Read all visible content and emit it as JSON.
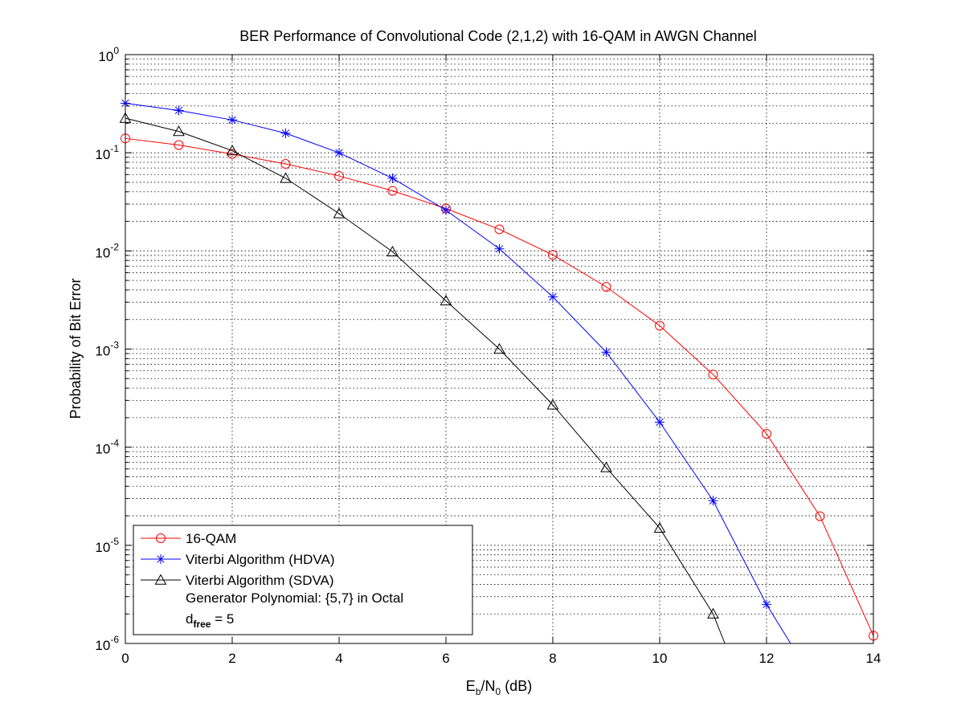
{
  "chart_data": {
    "type": "line",
    "title": "BER Performance of Convolutional Code (2,1,2) with 16-QAM in AWGN Channel",
    "xlabel": {
      "main": "E",
      "sub1": "b",
      "mid": "/N",
      "sub2": "0",
      "unit": " (dB)"
    },
    "ylabel": "Probability of Bit Error",
    "xlim": [
      0,
      14
    ],
    "ylim": [
      1e-06,
      1
    ],
    "yscale": "log",
    "grid": true,
    "xticks": [
      "0",
      "2",
      "4",
      "6",
      "8",
      "10",
      "12",
      "14"
    ],
    "xtick_values": [
      0,
      2,
      4,
      6,
      8,
      10,
      12,
      14
    ],
    "yticks": [
      {
        "base": "10",
        "exp": "-6",
        "value": 1e-06
      },
      {
        "base": "10",
        "exp": "-5",
        "value": 1e-05
      },
      {
        "base": "10",
        "exp": "-4",
        "value": 0.0001
      },
      {
        "base": "10",
        "exp": "-3",
        "value": 0.001
      },
      {
        "base": "10",
        "exp": "-2",
        "value": 0.01
      },
      {
        "base": "10",
        "exp": "-1",
        "value": 0.1
      },
      {
        "base": "10",
        "exp": "0",
        "value": 1
      }
    ],
    "series": [
      {
        "name": "16-QAM",
        "color": "#ff0000",
        "marker": "circle",
        "x": [
          0,
          1,
          2,
          3,
          4,
          5,
          6,
          7,
          8,
          9,
          10,
          11,
          12,
          13,
          14
        ],
        "y": [
          0.14,
          0.12,
          0.097,
          0.077,
          0.058,
          0.041,
          0.027,
          0.0166,
          0.0091,
          0.0043,
          0.00173,
          0.00055,
          0.000137,
          1.98e-05,
          1.2e-06
        ]
      },
      {
        "name": "Viterbi Algorithm (HDVA)",
        "color": "#0000ff",
        "marker": "star",
        "x": [
          0,
          1,
          2,
          3,
          4,
          5,
          6,
          7,
          8,
          9,
          10,
          11,
          12
        ],
        "y": [
          0.32,
          0.27,
          0.216,
          0.158,
          0.1,
          0.055,
          0.026,
          0.0105,
          0.0034,
          0.00093,
          0.00018,
          2.85e-05,
          2.5e-06
        ],
        "tail": {
          "x": 12.45,
          "y": 1e-06
        }
      },
      {
        "name": "Viterbi Algorithm (SDVA)",
        "color": "#000000",
        "marker": "triangle",
        "x": [
          0,
          1,
          2,
          3,
          4,
          5,
          6,
          7,
          8,
          9,
          10,
          11
        ],
        "y": [
          0.225,
          0.165,
          0.105,
          0.055,
          0.024,
          0.0098,
          0.0031,
          0.001,
          0.00027,
          6.2e-05,
          1.5e-05,
          2e-06
        ],
        "tail": {
          "x": 11.22,
          "y": 1e-06
        }
      }
    ],
    "legend": {
      "position": "bottom-left",
      "entries": [
        "16-QAM",
        "Viterbi Algorithm (HDVA)",
        "Viterbi Algorithm (SDVA)"
      ],
      "note1": "Generator Polynomial: {5,7} in Octal",
      "note2": {
        "main": "d",
        "sub": "free",
        "rest": " = 5"
      }
    },
    "colors": {
      "axes": "#000000",
      "grid": "#000000",
      "background": "#ffffff"
    }
  }
}
